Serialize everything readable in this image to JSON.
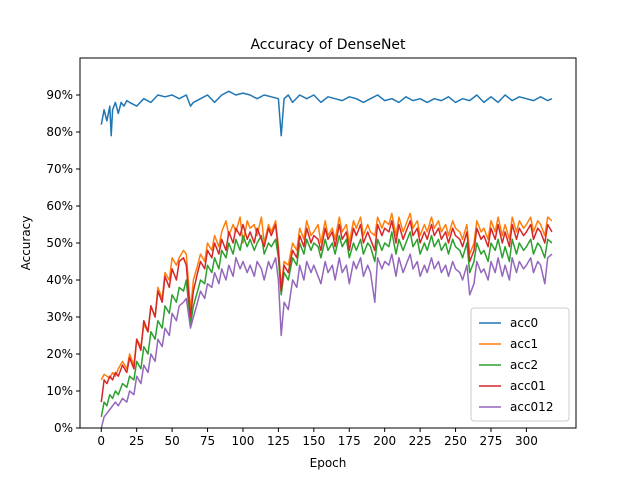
{
  "chart_data": {
    "type": "line",
    "title": "Accuracy of DenseNet",
    "xlabel": "Epoch",
    "ylabel": "Accuracy",
    "xlim": [
      -15,
      335
    ],
    "ylim": [
      0,
      100
    ],
    "xticks": [
      0,
      25,
      50,
      75,
      100,
      125,
      150,
      175,
      200,
      225,
      250,
      275,
      300
    ],
    "yticks": [
      0,
      10,
      20,
      30,
      40,
      50,
      60,
      70,
      80,
      90
    ],
    "ytick_labels": [
      "0%",
      "10%",
      "20%",
      "30%",
      "40%",
      "50%",
      "60%",
      "70%",
      "80%",
      "90%"
    ],
    "grid": false,
    "legend_position": "lower-right",
    "series": [
      {
        "name": "acc0",
        "color": "#1f77b4",
        "x": [
          0,
          2,
          4,
          6,
          7,
          8,
          10,
          12,
          14,
          16,
          18,
          20,
          25,
          30,
          35,
          40,
          45,
          50,
          55,
          60,
          63,
          65,
          70,
          75,
          80,
          85,
          90,
          95,
          100,
          105,
          110,
          115,
          120,
          125,
          127,
          129,
          132,
          135,
          140,
          145,
          150,
          155,
          160,
          165,
          170,
          175,
          180,
          185,
          190,
          195,
          200,
          205,
          210,
          215,
          220,
          225,
          230,
          235,
          240,
          245,
          250,
          255,
          260,
          265,
          270,
          275,
          280,
          285,
          290,
          295,
          300,
          305,
          310,
          315,
          318
        ],
        "y": [
          82,
          86,
          83,
          87,
          79,
          86,
          88,
          85,
          88,
          87,
          88.5,
          88,
          87,
          89,
          88,
          90,
          89.5,
          90,
          89,
          90,
          87,
          88,
          89,
          90,
          88,
          90,
          91,
          90,
          90.5,
          90,
          89,
          90,
          89.5,
          89,
          79,
          89,
          90,
          88,
          90,
          89,
          90,
          88,
          89.5,
          89,
          88.5,
          89.5,
          89,
          88,
          89,
          90,
          88.5,
          89,
          88,
          89.5,
          88.5,
          89,
          88,
          89,
          88.5,
          89.5,
          88,
          89,
          88.5,
          90,
          88,
          89.5,
          88,
          90,
          88.5,
          89.5,
          89,
          88.5,
          89.5,
          88.5,
          89
        ]
      },
      {
        "name": "acc1",
        "color": "#ff7f0e",
        "x": [
          0,
          2,
          4,
          6,
          8,
          10,
          12,
          15,
          18,
          20,
          23,
          25,
          28,
          30,
          33,
          35,
          38,
          40,
          43,
          45,
          48,
          50,
          53,
          55,
          58,
          60,
          63,
          65,
          68,
          70,
          73,
          75,
          78,
          80,
          83,
          85,
          88,
          90,
          93,
          95,
          98,
          100,
          103,
          105,
          108,
          110,
          113,
          115,
          118,
          120,
          123,
          125,
          127,
          129,
          132,
          135,
          138,
          140,
          143,
          145,
          148,
          150,
          153,
          155,
          158,
          160,
          163,
          165,
          168,
          170,
          173,
          175,
          178,
          180,
          183,
          185,
          188,
          190,
          193,
          195,
          198,
          200,
          203,
          205,
          208,
          210,
          213,
          215,
          218,
          220,
          223,
          225,
          228,
          230,
          233,
          235,
          238,
          240,
          243,
          245,
          248,
          250,
          253,
          255,
          258,
          260,
          263,
          265,
          268,
          270,
          273,
          275,
          278,
          280,
          283,
          285,
          288,
          290,
          293,
          295,
          298,
          300,
          303,
          305,
          308,
          310,
          313,
          315,
          318
        ],
        "y": [
          13,
          14.5,
          14,
          13.5,
          15,
          14,
          16,
          18,
          16,
          20,
          17,
          24,
          22,
          28,
          26,
          33,
          30,
          38,
          35,
          42,
          40,
          46,
          44,
          46,
          48,
          47,
          32,
          40,
          44,
          47,
          45,
          50,
          48,
          52,
          49,
          53,
          56,
          52,
          55,
          53,
          57,
          50,
          56,
          54,
          55,
          52,
          57,
          50,
          55,
          53,
          56,
          49,
          38,
          45,
          44,
          50,
          48,
          54,
          51,
          56,
          52,
          53,
          55,
          50,
          56,
          52,
          54,
          51,
          57,
          53,
          55,
          50,
          56,
          54,
          57,
          52,
          55,
          53,
          52,
          57,
          54,
          56,
          55,
          58,
          52,
          57,
          53,
          55,
          58,
          54,
          56,
          52,
          55,
          53,
          57,
          54,
          56,
          53,
          55,
          52,
          56,
          54,
          53,
          51,
          55,
          47,
          50,
          56,
          53,
          54,
          51,
          56,
          53,
          57,
          52,
          55,
          51,
          57,
          53,
          56,
          54,
          55,
          57,
          53,
          56,
          55,
          52,
          57,
          56
        ]
      },
      {
        "name": "acc2",
        "color": "#2ca02c",
        "x": [
          0,
          2,
          4,
          6,
          8,
          10,
          12,
          15,
          18,
          20,
          23,
          25,
          28,
          30,
          33,
          35,
          38,
          40,
          43,
          45,
          48,
          50,
          53,
          55,
          58,
          60,
          63,
          65,
          68,
          70,
          73,
          75,
          78,
          80,
          83,
          85,
          88,
          90,
          93,
          95,
          98,
          100,
          103,
          105,
          108,
          110,
          113,
          115,
          118,
          120,
          123,
          125,
          127,
          129,
          132,
          135,
          138,
          140,
          143,
          145,
          148,
          150,
          153,
          155,
          158,
          160,
          163,
          165,
          168,
          170,
          173,
          175,
          178,
          180,
          183,
          185,
          188,
          190,
          193,
          195,
          198,
          200,
          203,
          205,
          208,
          210,
          213,
          215,
          218,
          220,
          223,
          225,
          228,
          230,
          233,
          235,
          238,
          240,
          243,
          245,
          248,
          250,
          253,
          255,
          258,
          260,
          263,
          265,
          268,
          270,
          273,
          275,
          278,
          280,
          283,
          285,
          288,
          290,
          293,
          295,
          298,
          300,
          303,
          305,
          308,
          310,
          313,
          315,
          318
        ],
        "y": [
          3,
          7,
          6,
          9,
          8,
          10,
          9,
          12,
          11,
          14,
          13,
          18,
          16,
          22,
          20,
          26,
          24,
          29,
          27,
          33,
          31,
          36,
          34,
          38,
          37,
          40,
          28,
          33,
          37,
          40,
          39,
          44,
          42,
          46,
          43,
          48,
          46,
          50,
          47,
          51,
          48,
          52,
          49,
          51,
          48,
          50,
          52,
          47,
          50,
          49,
          51,
          46,
          36,
          42,
          40,
          46,
          44,
          50,
          47,
          51,
          48,
          50,
          49,
          46,
          51,
          48,
          50,
          47,
          52,
          49,
          51,
          46,
          50,
          48,
          51,
          47,
          50,
          49,
          45,
          51,
          48,
          50,
          49,
          53,
          47,
          51,
          48,
          50,
          53,
          49,
          51,
          47,
          50,
          48,
          52,
          49,
          51,
          48,
          50,
          47,
          51,
          49,
          48,
          46,
          50,
          42,
          45,
          50,
          47,
          48,
          45,
          50,
          48,
          51,
          46,
          49,
          45,
          51,
          47,
          50,
          48,
          49,
          51,
          47,
          50,
          49,
          46,
          51,
          50
        ]
      },
      {
        "name": "acc01",
        "color": "#d62728",
        "x": [
          0,
          2,
          4,
          6,
          8,
          10,
          12,
          15,
          18,
          20,
          23,
          25,
          28,
          30,
          33,
          35,
          38,
          40,
          43,
          45,
          48,
          50,
          53,
          55,
          58,
          60,
          63,
          65,
          68,
          70,
          73,
          75,
          78,
          80,
          83,
          85,
          88,
          90,
          93,
          95,
          98,
          100,
          103,
          105,
          108,
          110,
          113,
          115,
          118,
          120,
          123,
          125,
          127,
          129,
          132,
          135,
          138,
          140,
          143,
          145,
          148,
          150,
          153,
          155,
          158,
          160,
          163,
          165,
          168,
          170,
          173,
          175,
          178,
          180,
          183,
          185,
          188,
          190,
          193,
          195,
          198,
          200,
          203,
          205,
          208,
          210,
          213,
          215,
          218,
          220,
          223,
          225,
          228,
          230,
          233,
          235,
          238,
          240,
          243,
          245,
          248,
          250,
          253,
          255,
          258,
          260,
          263,
          265,
          268,
          270,
          273,
          275,
          278,
          280,
          283,
          285,
          288,
          290,
          293,
          295,
          298,
          300,
          303,
          305,
          308,
          310,
          313,
          315,
          318
        ],
        "y": [
          7,
          13,
          12,
          14,
          13,
          15,
          14,
          17,
          15,
          19,
          16,
          24,
          21,
          29,
          26,
          33,
          30,
          37,
          34,
          41,
          38,
          43,
          40,
          45,
          46,
          44,
          30,
          37,
          42,
          45,
          43,
          48,
          46,
          50,
          47,
          51,
          48,
          53,
          50,
          54,
          52,
          55,
          51,
          53,
          50,
          54,
          51,
          49,
          54,
          52,
          55,
          48,
          37,
          44,
          42,
          48,
          46,
          52,
          49,
          54,
          50,
          52,
          51,
          48,
          54,
          51,
          53,
          49,
          55,
          51,
          53,
          48,
          54,
          52,
          55,
          50,
          53,
          51,
          48,
          55,
          52,
          54,
          53,
          56,
          50,
          55,
          51,
          53,
          56,
          52,
          54,
          50,
          53,
          51,
          55,
          52,
          54,
          51,
          53,
          50,
          54,
          52,
          51,
          49,
          53,
          45,
          48,
          54,
          51,
          52,
          49,
          54,
          51,
          55,
          50,
          53,
          49,
          55,
          51,
          54,
          52,
          53,
          55,
          51,
          54,
          53,
          50,
          55,
          53
        ]
      },
      {
        "name": "acc012",
        "color": "#9467bd",
        "x": [
          0,
          2,
          4,
          6,
          8,
          10,
          12,
          15,
          18,
          20,
          23,
          25,
          28,
          30,
          33,
          35,
          38,
          40,
          43,
          45,
          48,
          50,
          53,
          55,
          58,
          60,
          63,
          65,
          68,
          70,
          73,
          75,
          78,
          80,
          83,
          85,
          88,
          90,
          93,
          95,
          98,
          100,
          103,
          105,
          108,
          110,
          113,
          115,
          118,
          120,
          123,
          125,
          127,
          129,
          132,
          135,
          138,
          140,
          143,
          145,
          148,
          150,
          153,
          155,
          158,
          160,
          163,
          165,
          168,
          170,
          173,
          175,
          178,
          180,
          183,
          185,
          188,
          190,
          193,
          195,
          198,
          200,
          203,
          205,
          208,
          210,
          213,
          215,
          218,
          220,
          223,
          225,
          228,
          230,
          233,
          235,
          238,
          240,
          243,
          245,
          248,
          250,
          253,
          255,
          258,
          260,
          263,
          265,
          268,
          270,
          273,
          275,
          278,
          280,
          283,
          285,
          288,
          290,
          293,
          295,
          298,
          300,
          303,
          305,
          308,
          310,
          313,
          315,
          318
        ],
        "y": [
          0,
          3,
          4,
          5,
          6,
          7,
          6,
          8,
          7,
          10,
          9,
          14,
          12,
          17,
          15,
          20,
          18,
          24,
          22,
          27,
          25,
          31,
          29,
          33,
          34,
          35,
          27,
          30,
          34,
          37,
          35,
          39,
          38,
          42,
          39,
          43,
          40,
          44,
          41,
          46,
          43,
          45,
          42,
          44,
          41,
          45,
          43,
          40,
          45,
          43,
          46,
          40,
          25,
          34,
          32,
          40,
          38,
          44,
          40,
          45,
          42,
          44,
          41,
          39,
          45,
          42,
          44,
          40,
          46,
          42,
          44,
          39,
          45,
          43,
          46,
          41,
          44,
          42,
          34,
          46,
          43,
          45,
          44,
          47,
          41,
          46,
          42,
          44,
          47,
          43,
          45,
          41,
          44,
          42,
          46,
          43,
          45,
          42,
          44,
          41,
          45,
          43,
          42,
          40,
          44,
          36,
          39,
          45,
          42,
          43,
          40,
          45,
          42,
          46,
          41,
          44,
          40,
          46,
          42,
          45,
          43,
          44,
          46,
          42,
          45,
          44,
          39,
          46,
          47
        ]
      }
    ]
  }
}
